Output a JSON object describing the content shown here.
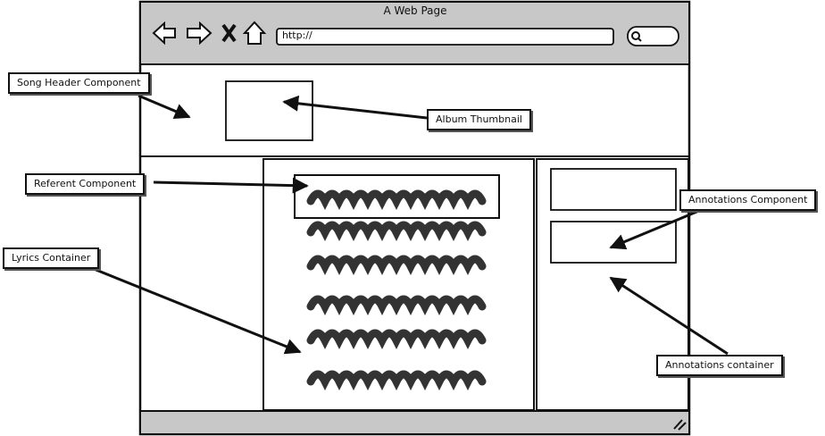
{
  "window": {
    "title": "A Web Page"
  },
  "address_bar": {
    "url": "http://"
  },
  "nav_icons": [
    "back-arrow-icon",
    "forward-arrow-icon",
    "close-x-icon",
    "home-icon"
  ],
  "search_icon": "search-icon",
  "resize_icon": "resize-grip-icon",
  "callouts": {
    "song_header": "Song Header Component",
    "album_thumbnail": "Album Thumbnail",
    "referent": "Referent Component",
    "lyrics_container": "Lyrics Container",
    "annotations_component": "Annotations Component",
    "annotations_container": "Annotations container"
  },
  "lyrics": {
    "scribble_lines": 6
  },
  "colors": {
    "chrome": "#c8c8c8",
    "ink": "#111111",
    "scribble": "#333333"
  }
}
